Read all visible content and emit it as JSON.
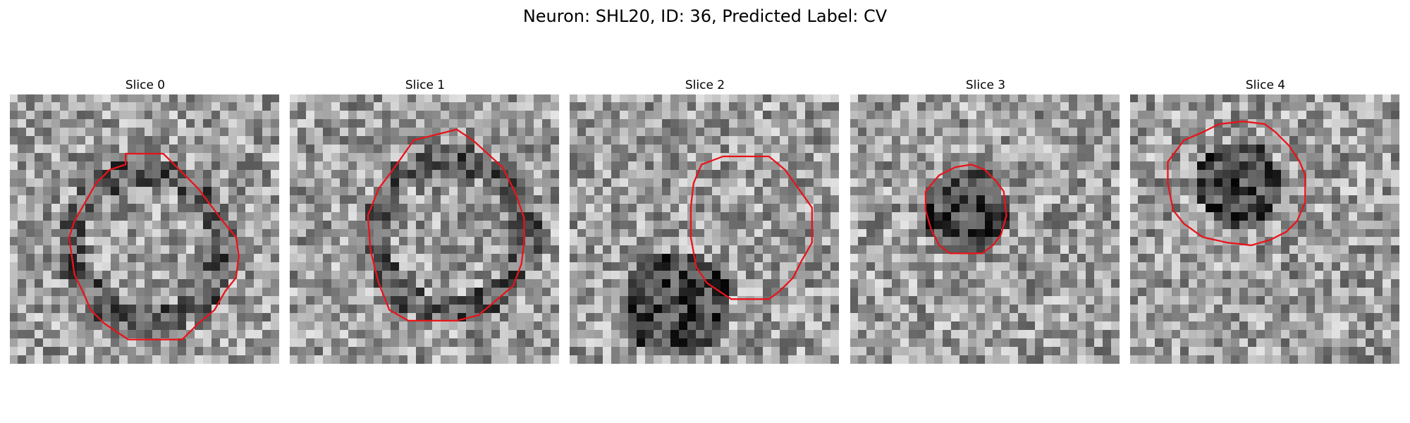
{
  "figure": {
    "title": "Neuron: SHL20, ID: 36, Predicted Label: CV",
    "contour_color": "#e8141a"
  },
  "panels": [
    {
      "title": "Slice 0",
      "seed": 11,
      "contour": [
        [
          0.43,
          0.22
        ],
        [
          0.57,
          0.22
        ],
        [
          0.62,
          0.27
        ],
        [
          0.7,
          0.35
        ],
        [
          0.79,
          0.47
        ],
        [
          0.84,
          0.53
        ],
        [
          0.85,
          0.6
        ],
        [
          0.84,
          0.68
        ],
        [
          0.8,
          0.73
        ],
        [
          0.76,
          0.8
        ],
        [
          0.7,
          0.85
        ],
        [
          0.64,
          0.91
        ],
        [
          0.44,
          0.91
        ],
        [
          0.35,
          0.85
        ],
        [
          0.3,
          0.8
        ],
        [
          0.27,
          0.73
        ],
        [
          0.24,
          0.67
        ],
        [
          0.23,
          0.6
        ],
        [
          0.22,
          0.53
        ],
        [
          0.24,
          0.47
        ],
        [
          0.28,
          0.4
        ],
        [
          0.32,
          0.33
        ],
        [
          0.37,
          0.28
        ],
        [
          0.43,
          0.26
        ]
      ]
    },
    {
      "title": "Slice 1",
      "seed": 23,
      "contour": [
        [
          0.46,
          0.17
        ],
        [
          0.62,
          0.13
        ],
        [
          0.68,
          0.17
        ],
        [
          0.79,
          0.27
        ],
        [
          0.84,
          0.37
        ],
        [
          0.87,
          0.46
        ],
        [
          0.87,
          0.55
        ],
        [
          0.86,
          0.63
        ],
        [
          0.83,
          0.71
        ],
        [
          0.76,
          0.77
        ],
        [
          0.7,
          0.82
        ],
        [
          0.62,
          0.84
        ],
        [
          0.44,
          0.84
        ],
        [
          0.37,
          0.8
        ],
        [
          0.33,
          0.7
        ],
        [
          0.3,
          0.58
        ],
        [
          0.29,
          0.45
        ],
        [
          0.33,
          0.35
        ],
        [
          0.39,
          0.27
        ]
      ]
    },
    {
      "title": "Slice 2",
      "seed": 37,
      "contour": [
        [
          0.49,
          0.26
        ],
        [
          0.57,
          0.23
        ],
        [
          0.74,
          0.23
        ],
        [
          0.8,
          0.28
        ],
        [
          0.85,
          0.35
        ],
        [
          0.9,
          0.42
        ],
        [
          0.9,
          0.55
        ],
        [
          0.86,
          0.62
        ],
        [
          0.83,
          0.68
        ],
        [
          0.78,
          0.73
        ],
        [
          0.74,
          0.76
        ],
        [
          0.6,
          0.76
        ],
        [
          0.51,
          0.7
        ],
        [
          0.47,
          0.64
        ],
        [
          0.45,
          0.53
        ],
        [
          0.45,
          0.42
        ],
        [
          0.46,
          0.33
        ]
      ]
    },
    {
      "title": "Slice 3",
      "seed": 41,
      "contour": [
        [
          0.33,
          0.3
        ],
        [
          0.39,
          0.27
        ],
        [
          0.45,
          0.26
        ],
        [
          0.5,
          0.28
        ],
        [
          0.54,
          0.32
        ],
        [
          0.57,
          0.36
        ],
        [
          0.58,
          0.45
        ],
        [
          0.56,
          0.52
        ],
        [
          0.53,
          0.56
        ],
        [
          0.49,
          0.59
        ],
        [
          0.43,
          0.59
        ],
        [
          0.37,
          0.59
        ],
        [
          0.33,
          0.56
        ],
        [
          0.3,
          0.5
        ],
        [
          0.28,
          0.43
        ],
        [
          0.28,
          0.36
        ]
      ]
    },
    {
      "title": "Slice 4",
      "seed": 53,
      "contour": [
        [
          0.2,
          0.17
        ],
        [
          0.27,
          0.14
        ],
        [
          0.33,
          0.11
        ],
        [
          0.42,
          0.1
        ],
        [
          0.5,
          0.11
        ],
        [
          0.54,
          0.14
        ],
        [
          0.59,
          0.19
        ],
        [
          0.63,
          0.25
        ],
        [
          0.65,
          0.3
        ],
        [
          0.65,
          0.4
        ],
        [
          0.62,
          0.47
        ],
        [
          0.58,
          0.51
        ],
        [
          0.52,
          0.54
        ],
        [
          0.45,
          0.56
        ],
        [
          0.36,
          0.55
        ],
        [
          0.27,
          0.53
        ],
        [
          0.2,
          0.48
        ],
        [
          0.16,
          0.43
        ],
        [
          0.14,
          0.33
        ],
        [
          0.14,
          0.25
        ]
      ]
    }
  ]
}
